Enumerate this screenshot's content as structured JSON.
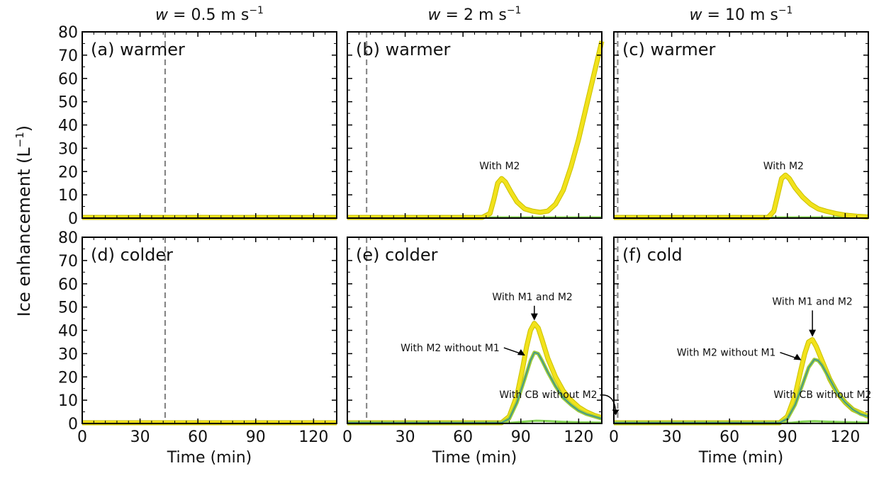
{
  "figure": {
    "ylabel_prefix": "Ice enhancement (L",
    "ylabel_exp": "−1",
    "ylabel_suffix": ")",
    "xlabel": "Time (min)",
    "x_ticks": [
      0,
      30,
      60,
      90,
      120
    ],
    "y_ticks": [
      0,
      10,
      20,
      30,
      40,
      50,
      60,
      70,
      80
    ],
    "columns": [
      {
        "w_symbol": "w",
        "w_text": " = 0.5 m s",
        "w_exp": "−1"
      },
      {
        "w_symbol": "w",
        "w_text": " = 2 m s",
        "w_exp": "−1"
      },
      {
        "w_symbol": "w",
        "w_text": " = 10 m s",
        "w_exp": "−1"
      }
    ],
    "colors": {
      "m1_m2": "#f2e21c",
      "m1_m2_edge": "#c9c000",
      "m2_no_m1": "#9ecb3c",
      "m2_no_m1_core": "#2f8d9a",
      "cb_no_m2": "#7fcf4f",
      "dashed": "#808080"
    }
  },
  "chart_data": [
    {
      "type": "line",
      "panel": "(a) warmer",
      "xlim": [
        0,
        132
      ],
      "ylim": [
        0,
        80
      ],
      "grid": false,
      "vline_x": 43,
      "series": [
        {
          "x": [
            0,
            132
          ],
          "y": [
            0.3,
            0.3
          ]
        },
        {
          "x": [
            0,
            132
          ],
          "y": [
            0.3,
            0.3
          ]
        }
      ],
      "annotations": []
    },
    {
      "type": "line",
      "panel": "(b) warmer",
      "xlim": [
        0,
        132
      ],
      "ylim": [
        0,
        80
      ],
      "grid": false,
      "vline_x": 10,
      "series": [
        {
          "name": "With M2",
          "x": [
            0,
            70,
            74,
            76,
            78,
            80,
            82,
            85,
            88,
            92,
            96,
            100,
            104,
            108,
            112,
            116,
            120,
            124,
            128,
            132
          ],
          "y": [
            0.3,
            0.3,
            2,
            8,
            15,
            17,
            15.5,
            11,
            7,
            4,
            3,
            2.5,
            3,
            6,
            12,
            22,
            34,
            48,
            62,
            76
          ]
        },
        {
          "x": [
            0,
            132
          ],
          "y": [
            0.3,
            0.3
          ]
        }
      ],
      "annotations": [
        {
          "text": "With M2",
          "x": 79,
          "y": 21
        }
      ]
    },
    {
      "type": "line",
      "panel": "(c) warmer",
      "xlim": [
        0,
        132
      ],
      "ylim": [
        0,
        80
      ],
      "grid": false,
      "vline_x": 2,
      "series": [
        {
          "name": "With M2",
          "x": [
            0,
            80,
            83,
            85,
            87,
            89,
            91,
            94,
            98,
            102,
            106,
            110,
            115,
            120,
            126,
            132
          ],
          "y": [
            0.3,
            0.3,
            3,
            10,
            17,
            18.5,
            17,
            13,
            9,
            6,
            4,
            3,
            2,
            1.3,
            0.8,
            0.5
          ]
        },
        {
          "x": [
            0,
            132
          ],
          "y": [
            0.3,
            0.3
          ]
        }
      ],
      "annotations": [
        {
          "text": "With M2",
          "x": 88,
          "y": 21
        }
      ]
    },
    {
      "type": "line",
      "panel": "(d) colder",
      "xlim": [
        0,
        132
      ],
      "ylim": [
        0,
        80
      ],
      "grid": false,
      "vline_x": 43,
      "series": [
        {
          "x": [
            0,
            132
          ],
          "y": [
            0.3,
            0.3
          ]
        },
        {
          "x": [
            0,
            132
          ],
          "y": [
            0.3,
            0.3
          ]
        }
      ],
      "annotations": []
    },
    {
      "type": "line",
      "panel": "(e) colder",
      "xlim": [
        0,
        132
      ],
      "ylim": [
        0,
        80
      ],
      "grid": false,
      "vline_x": 10,
      "series": [
        {
          "name": "With M1 and M2",
          "x": [
            0,
            80,
            84,
            88,
            91,
            93,
            95,
            97,
            99,
            101,
            104,
            108,
            112,
            116,
            120,
            124,
            128,
            132
          ],
          "y": [
            0.3,
            0.3,
            3,
            12,
            24,
            33,
            40,
            43,
            41,
            36,
            28,
            20,
            14,
            10,
            7,
            5,
            3.5,
            2.5
          ]
        },
        {
          "name": "With M2 without M1",
          "x": [
            0,
            80,
            84,
            88,
            92,
            95,
            97,
            99,
            101,
            104,
            108,
            112,
            116,
            120,
            124,
            128,
            132
          ],
          "y": [
            0.3,
            0.3,
            2,
            9,
            19,
            27,
            30.5,
            30,
            27,
            22,
            16,
            11,
            8,
            5.5,
            4,
            3,
            2
          ]
        },
        {
          "name": "With CB without M2",
          "x": [
            0,
            85,
            92,
            98,
            105,
            112,
            120,
            132
          ],
          "y": [
            0.3,
            0.3,
            0.8,
            1.2,
            1.0,
            0.7,
            0.5,
            0.4
          ]
        }
      ],
      "annotations": [
        {
          "text": "With M1 and M2",
          "x": 96,
          "y": 53
        },
        {
          "text": "With M2 without M1",
          "x": 79,
          "y": 31
        },
        {
          "text": "With CB without M2",
          "x": 80,
          "y": 11
        }
      ]
    },
    {
      "type": "line",
      "panel": "(f) cold",
      "xlim": [
        0,
        132
      ],
      "ylim": [
        0,
        80
      ],
      "grid": false,
      "vline_x": 2,
      "series": [
        {
          "name": "With M1 and M2",
          "x": [
            0,
            86,
            90,
            94,
            97,
            99,
            101,
            103,
            105,
            108,
            112,
            116,
            120,
            124,
            128,
            132
          ],
          "y": [
            0.3,
            0.3,
            3,
            12,
            23,
            30,
            35,
            36,
            33,
            27,
            19,
            13,
            9,
            6,
            4.5,
            3
          ]
        },
        {
          "name": "With M2 without M1",
          "x": [
            0,
            86,
            90,
            94,
            98,
            101,
            104,
            106,
            108,
            112,
            116,
            120,
            124,
            128,
            132
          ],
          "y": [
            0.3,
            0.3,
            2,
            8,
            17,
            24,
            27.5,
            27,
            25,
            19,
            13,
            9,
            6,
            4,
            3
          ]
        },
        {
          "name": "With CB without M2",
          "x": [
            0,
            92,
            98,
            104,
            110,
            118,
            132
          ],
          "y": [
            0.3,
            0.3,
            0.8,
            1.0,
            0.8,
            0.6,
            0.4
          ]
        }
      ],
      "annotations": [
        {
          "text": "With M1 and M2",
          "x": 103,
          "y": 51
        },
        {
          "text": "With M2 without M1",
          "x": 84,
          "y": 29
        },
        {
          "text": "With CB without M2",
          "x": 84,
          "y": 11
        }
      ]
    }
  ]
}
